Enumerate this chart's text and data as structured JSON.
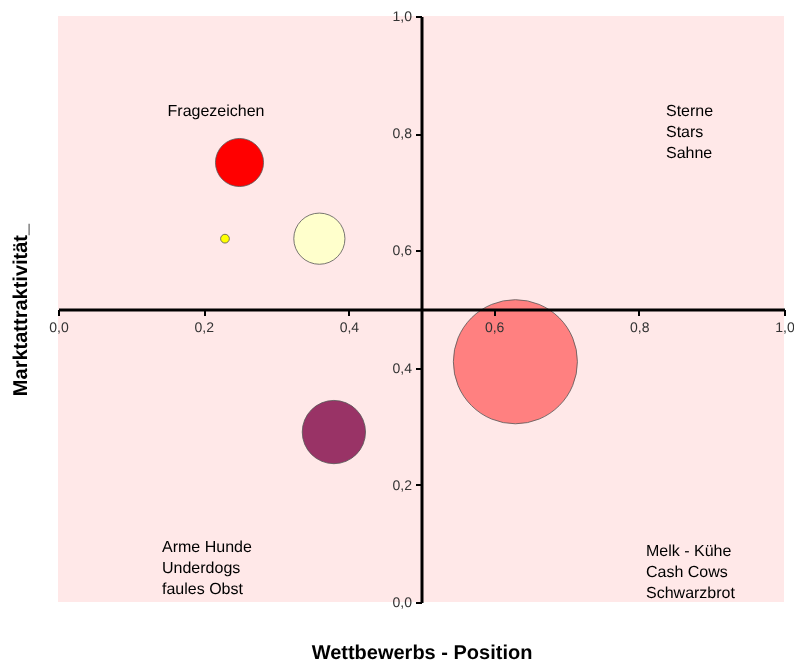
{
  "chart_data": {
    "type": "bubble",
    "xlabel": "Wettbewerbs - Position",
    "ylabel": "Marktattraktivität_",
    "x": [
      0.25,
      0.23,
      0.36,
      0.38,
      0.63
    ],
    "values": [
      0.75,
      0.62,
      0.62,
      0.29,
      0.41
    ],
    "sizes": [
      0.15,
      0.005,
      0.17,
      0.26,
      1
    ],
    "colors": [
      "#ff0000",
      "#ffff00",
      "#ffffcc",
      "#993366",
      "#ff8080"
    ],
    "xlim": [
      0,
      1
    ],
    "ylim": [
      0,
      1
    ],
    "xticks": [
      {
        "value": 0,
        "label": "0,0"
      },
      {
        "value": 0.2,
        "label": "0,2"
      },
      {
        "value": 0.4,
        "label": "0,4"
      },
      {
        "value": 0.6,
        "label": "0,6"
      },
      {
        "value": 0.8,
        "label": "0,8"
      },
      {
        "value": 1,
        "label": "1,0"
      }
    ],
    "yticks": [
      {
        "value": 0,
        "label": "0,0"
      },
      {
        "value": 0.2,
        "label": "0,2"
      },
      {
        "value": 0.4,
        "label": "0,4"
      },
      {
        "value": 0.6,
        "label": "0,6"
      },
      {
        "value": 0.8,
        "label": "0,8"
      },
      {
        "value": 1,
        "label": "1,0"
      }
    ],
    "grid": false,
    "annotations": [
      "Fragezeichen",
      "Sterne\nStars\nSahne",
      "Arme Hunde\nUnderdogs\nfaules Obst",
      "Melk - Kühe\nCash Cows\nSchwarzbrot"
    ]
  }
}
